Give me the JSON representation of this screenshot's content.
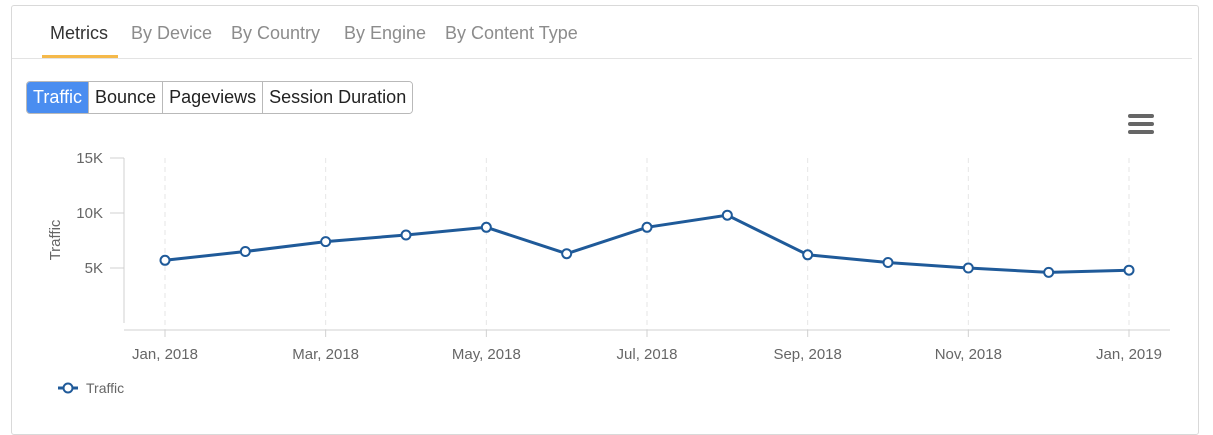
{
  "tabs": [
    {
      "label": "Metrics",
      "active": true
    },
    {
      "label": "By Device",
      "active": false
    },
    {
      "label": "By Country",
      "active": false
    },
    {
      "label": "By Engine",
      "active": false
    },
    {
      "label": "By Content Type",
      "active": false
    }
  ],
  "metric_buttons": [
    {
      "label": "Traffic",
      "active": true
    },
    {
      "label": "Bounce",
      "active": false
    },
    {
      "label": "Pageviews",
      "active": false
    },
    {
      "label": "Session Duration",
      "active": false
    }
  ],
  "menu_icon": "hamburger-menu-icon",
  "colors": {
    "accent": "#4a8df0",
    "series": "#1f5a99",
    "tab_underline": "#f5b94a"
  },
  "chart_data": {
    "type": "line",
    "ylabel": "Traffic",
    "xlabel": "",
    "ylim": [
      0,
      15000
    ],
    "y_ticks": [
      5000,
      10000,
      15000
    ],
    "y_tick_labels": [
      "5K",
      "10K",
      "15K"
    ],
    "x_ticks": [
      "2018-01",
      "2018-03",
      "2018-05",
      "2018-07",
      "2018-09",
      "2018-11",
      "2019-01"
    ],
    "x_tick_labels": [
      "Jan, 2018",
      "Mar, 2018",
      "May, 2018",
      "Jul, 2018",
      "Sep, 2018",
      "Nov, 2018",
      "Jan, 2019"
    ],
    "grid": "vertical dashed",
    "legend_position": "bottom-left",
    "series": [
      {
        "name": "Traffic",
        "x": [
          "2018-01",
          "2018-02",
          "2018-03",
          "2018-04",
          "2018-05",
          "2018-06",
          "2018-07",
          "2018-08",
          "2018-09",
          "2018-10",
          "2018-11",
          "2018-12",
          "2019-01"
        ],
        "values": [
          5700,
          6500,
          7400,
          8000,
          8700,
          6300,
          8700,
          9800,
          6200,
          5500,
          5000,
          4600,
          4800
        ]
      }
    ]
  }
}
